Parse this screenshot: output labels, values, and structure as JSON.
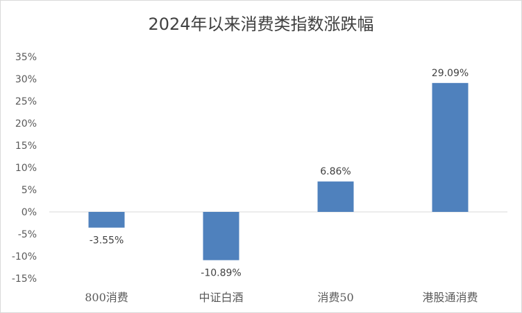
{
  "chart_data": {
    "type": "bar",
    "title": "2024年以来消费类指数涨跌幅",
    "categories": [
      "800消费",
      "中证白酒",
      "消费50",
      "港股通消费"
    ],
    "values": [
      -3.55,
      -10.89,
      6.86,
      29.09
    ],
    "data_labels": [
      "-3.55%",
      "-10.89%",
      "6.86%",
      "29.09%"
    ],
    "y_ticks": [
      "35%",
      "30%",
      "25%",
      "20%",
      "15%",
      "10%",
      "5%",
      "0%",
      "-5%",
      "-10%",
      "-15%"
    ],
    "ylim": [
      -15,
      35
    ],
    "xlabel": "",
    "ylabel": "",
    "grid": false,
    "bar_color": "#4f81bd"
  }
}
